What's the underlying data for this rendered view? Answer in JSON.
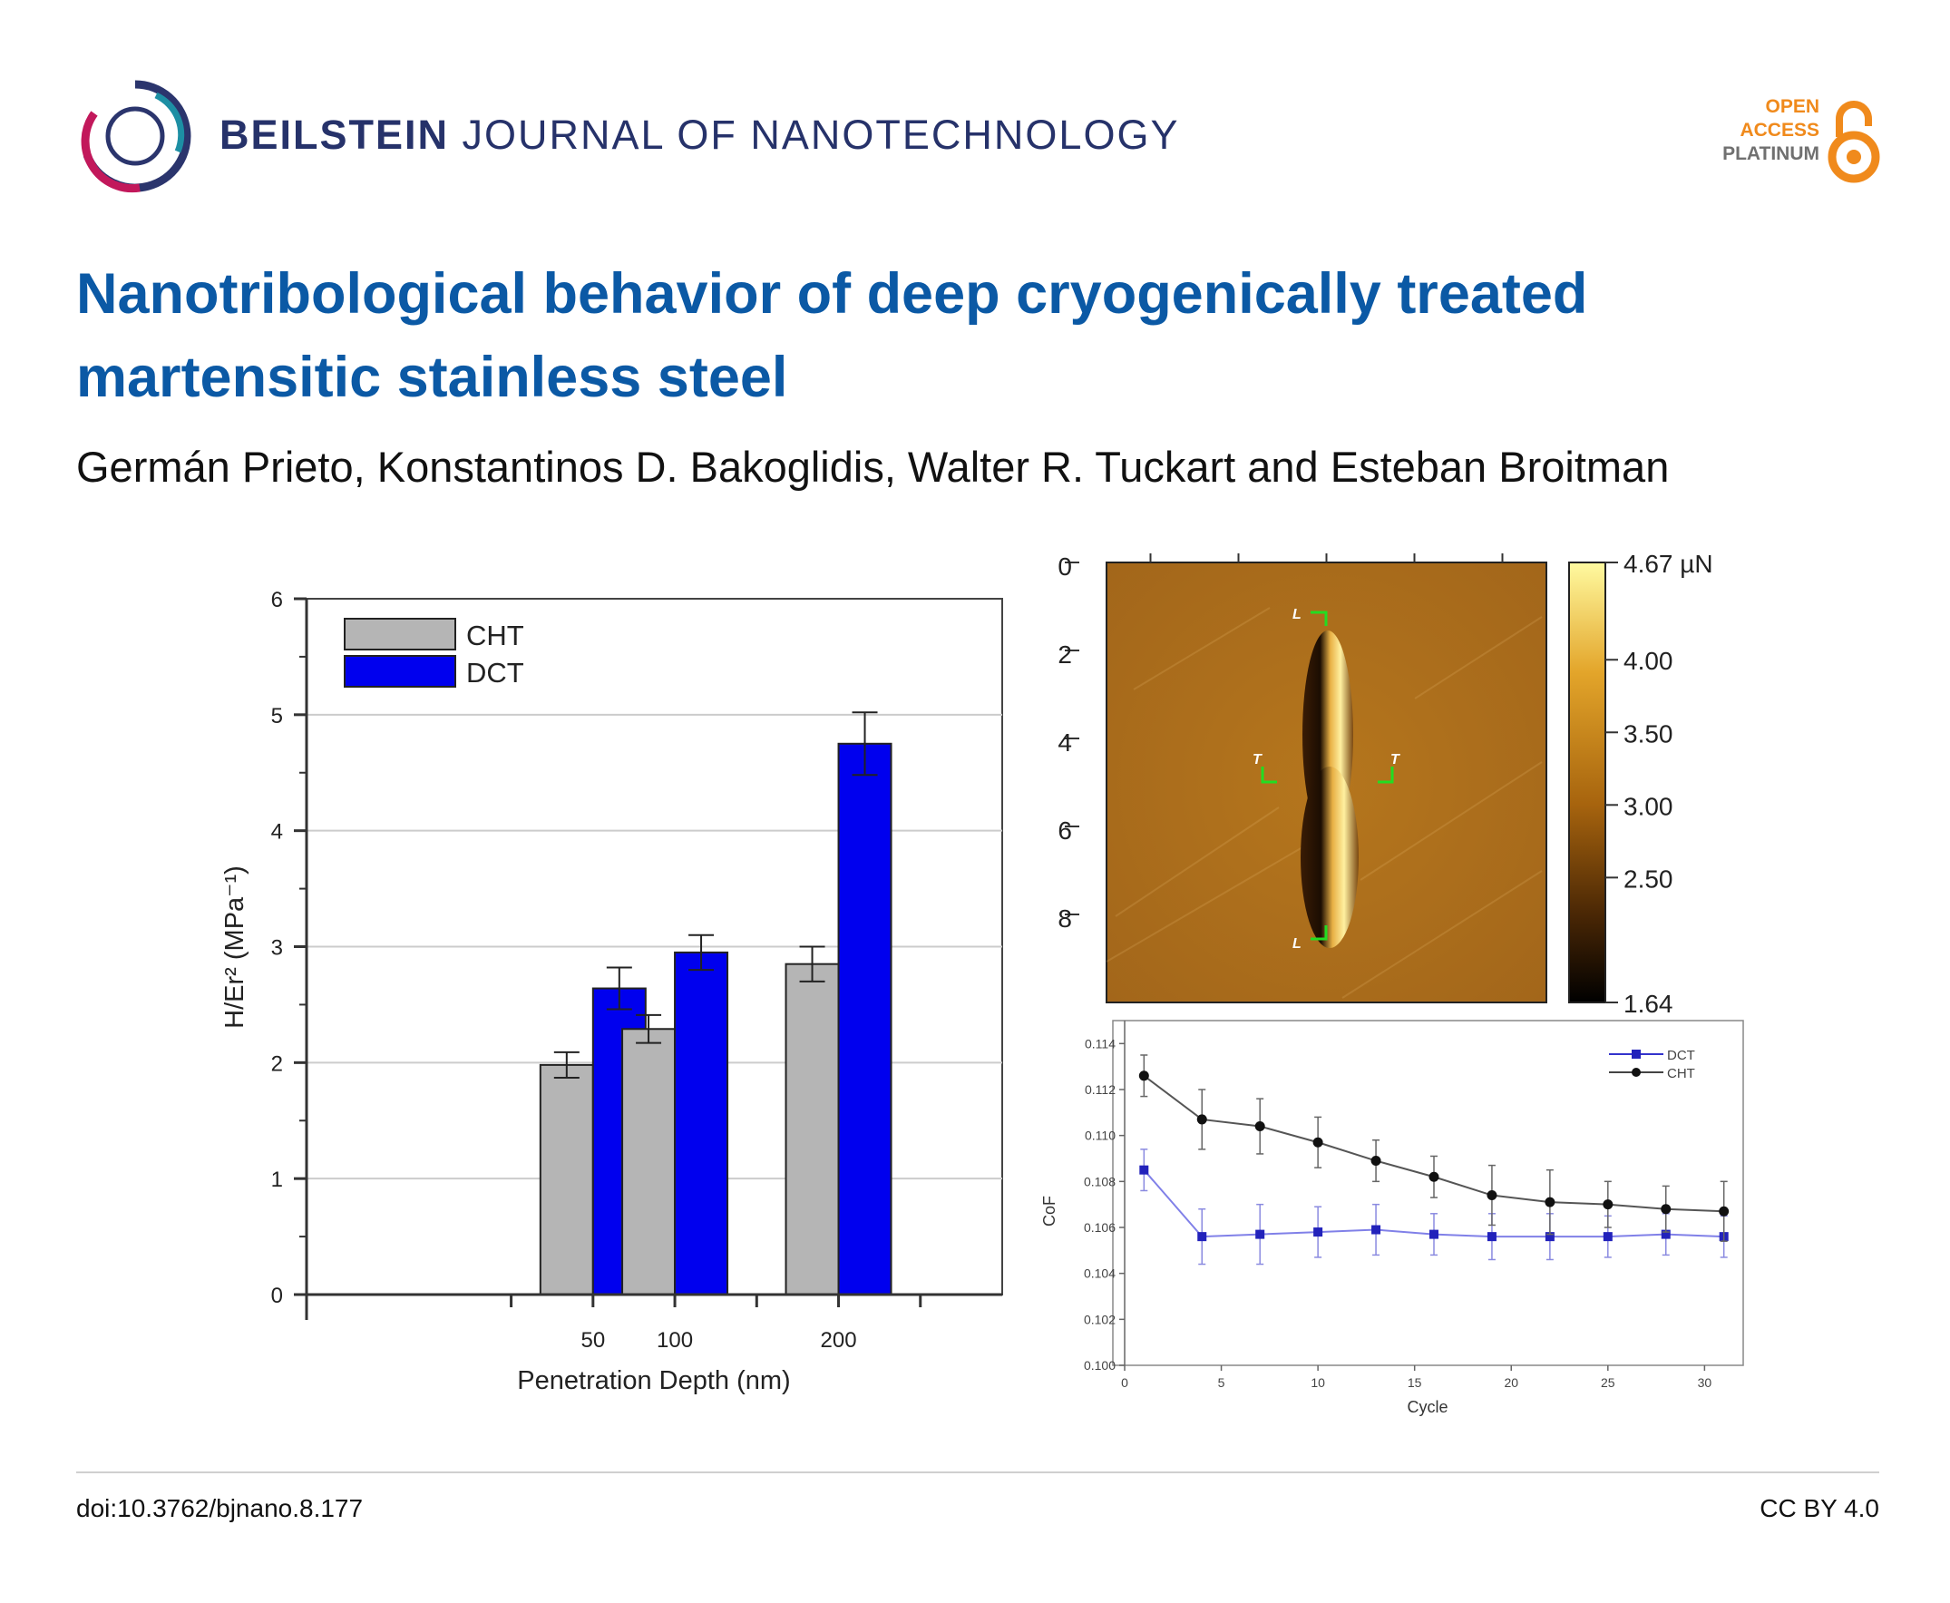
{
  "header": {
    "journal_bold": "BEILSTEIN",
    "journal_rest": "JOURNAL OF NANOTECHNOLOGY",
    "open_access": [
      "OPEN",
      "ACCESS",
      "PLATINUM"
    ]
  },
  "article": {
    "title": "Nanotribological behavior of deep cryogenically treated martensitic stainless steel",
    "authors": "Germán Prieto, Konstantinos D. Bakoglidis, Walter R. Tuckart and Esteban Broitman"
  },
  "footer": {
    "doi": "doi:10.3762/bjnano.8.177",
    "license": "CC BY 4.0"
  },
  "colors": {
    "title": "#0b59a5",
    "journal": "#26326a",
    "cht": "#b5b5b5",
    "dct": "#0000ee",
    "oa_orange": "#f08a1c"
  },
  "chart_data": [
    {
      "type": "bar",
      "categories": [
        "50",
        "100",
        "200"
      ],
      "series": [
        {
          "name": "CHT",
          "values": [
            1.98,
            2.29,
            2.85
          ],
          "errors": [
            0.11,
            0.12,
            0.15
          ]
        },
        {
          "name": "DCT",
          "values": [
            2.64,
            2.95,
            4.75
          ],
          "errors": [
            0.18,
            0.15,
            0.27
          ]
        }
      ],
      "xlabel": "Penetration Depth (nm)",
      "ylabel": "H/Er² (MPa⁻¹)",
      "ylim": [
        0,
        6
      ],
      "yticks": [
        "0",
        "1",
        "2",
        "3",
        "4",
        "5",
        "6"
      ],
      "legend": "top-left",
      "grid": true
    },
    {
      "type": "heatmap",
      "axis_ticks": [
        "0",
        "2",
        "4",
        "6",
        "8"
      ],
      "colorbar_ticks": [
        "4.67 µN",
        "4.00",
        "3.50",
        "3.00",
        "2.50",
        "1.64"
      ],
      "colorbar_range": [
        1.64,
        4.67
      ],
      "markers": [
        "L",
        "T",
        "T",
        "L"
      ]
    },
    {
      "type": "line",
      "x": [
        1,
        4,
        7,
        10,
        13,
        16,
        19,
        22,
        25,
        28,
        31
      ],
      "series": [
        {
          "name": "DCT",
          "values": [
            0.1085,
            0.1056,
            0.1057,
            0.1058,
            0.1059,
            0.1057,
            0.1056,
            0.1056,
            0.1056,
            0.1057,
            0.1056
          ],
          "errors": [
            0.0009,
            0.0012,
            0.0013,
            0.0011,
            0.0011,
            0.0009,
            0.001,
            0.001,
            0.0009,
            0.0009,
            0.0009
          ]
        },
        {
          "name": "CHT",
          "values": [
            0.1126,
            0.1107,
            0.1104,
            0.1097,
            0.1089,
            0.1082,
            0.1074,
            0.1071,
            0.107,
            0.1068,
            0.1067
          ],
          "errors": [
            0.0009,
            0.0013,
            0.0012,
            0.0011,
            0.0009,
            0.0009,
            0.0013,
            0.0014,
            0.001,
            0.001,
            0.0013
          ]
        }
      ],
      "xlabel": "Cycle",
      "ylabel": "CoF",
      "xlim": [
        0,
        32
      ],
      "ylim": [
        0.1,
        0.115
      ],
      "xticks": [
        "0",
        "5",
        "10",
        "15",
        "20",
        "25",
        "30"
      ],
      "yticks": [
        "0.100",
        "0.102",
        "0.104",
        "0.106",
        "0.108",
        "0.110",
        "0.112",
        "0.114"
      ],
      "legend": "top-right"
    }
  ]
}
